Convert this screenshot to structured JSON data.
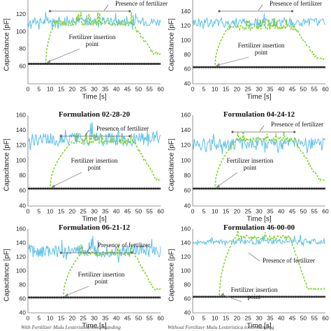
{
  "caption": {
    "left": "With Fertilizer Mulu Lesteristica tonormanding",
    "right": "Without Fertilizer Mulu Lesteristica tonormanding"
  },
  "chart_data": [
    {
      "type": "line",
      "title": "",
      "xlabel": "Time [s]",
      "ylabel": "Capacitance [pF]",
      "xlim": [
        0,
        60
      ],
      "ylim": [
        40,
        140
      ],
      "xticks": [
        0,
        5,
        10,
        15,
        20,
        25,
        30,
        35,
        40,
        45,
        50,
        55,
        60
      ],
      "yticks": [
        60,
        80,
        100,
        120,
        140
      ],
      "grid": false,
      "annotations": {
        "presence": "Presence of fertilizer",
        "insertion": "Fertilizer insertion point"
      },
      "presence_range": [
        10,
        46
      ],
      "insertion_time": 8,
      "series": [
        {
          "role": "with-fertilizer",
          "color": "#5bc0e8",
          "style": "solid",
          "baseline": 112,
          "amp": 5
        },
        {
          "role": "fertilizer-response",
          "color": "#7ed321",
          "style": "dashed",
          "base": 63,
          "plateau": 110,
          "rise": [
            8,
            12
          ],
          "fall": [
            47,
            57
          ]
        },
        {
          "role": "without-fertilizer",
          "color": "#222222",
          "style": "markers",
          "value": 63
        }
      ]
    },
    {
      "type": "line",
      "title": "",
      "xlabel": "Time [s]",
      "ylabel": "Capacitance [pF]",
      "xlim": [
        0,
        60
      ],
      "ylim": [
        40,
        160
      ],
      "xticks": [
        0,
        5,
        10,
        15,
        20,
        25,
        30,
        35,
        40,
        45,
        50,
        55,
        60
      ],
      "yticks": [
        40,
        60,
        80,
        100,
        120,
        140,
        160
      ],
      "grid": false,
      "annotations": {
        "presence": "Presence of fertilizer",
        "insertion": "Fertilizer insertion point"
      },
      "presence_range": [
        12,
        45
      ],
      "insertion_time": 10,
      "series": [
        {
          "role": "with-fertilizer",
          "color": "#5bc0e8",
          "style": "solid",
          "baseline": 125,
          "amp": 7
        },
        {
          "role": "fertilizer-response",
          "color": "#7ed321",
          "style": "dashed",
          "base": 63,
          "plateau": 118,
          "rise": [
            10,
            16
          ],
          "fall": [
            46,
            56
          ]
        },
        {
          "role": "without-fertilizer",
          "color": "#222222",
          "style": "markers",
          "value": 63
        }
      ]
    },
    {
      "type": "line",
      "title": "Formulation 02-28-20",
      "xlabel": "Time [s]",
      "ylabel": "Capacitance [pF]",
      "xlim": [
        0,
        60
      ],
      "ylim": [
        40,
        160
      ],
      "xticks": [
        0,
        5,
        10,
        15,
        20,
        25,
        30,
        35,
        40,
        45,
        50,
        55,
        60
      ],
      "yticks": [
        40,
        60,
        80,
        100,
        120,
        140,
        160
      ],
      "grid": false,
      "annotations": {
        "presence": "Presence of fertilizer",
        "insertion": "Fertilizer insertion point"
      },
      "presence_range": [
        15,
        46
      ],
      "insertion_time": 10,
      "series": [
        {
          "role": "with-fertilizer",
          "color": "#5bc0e8",
          "style": "solid",
          "baseline": 128,
          "amp": 9
        },
        {
          "role": "fertilizer-response",
          "color": "#7ed321",
          "style": "dashed",
          "base": 63,
          "plateau": 125,
          "rise": [
            10,
            20
          ],
          "fall": [
            48,
            58
          ]
        },
        {
          "role": "without-fertilizer",
          "color": "#222222",
          "style": "markers",
          "value": 63
        }
      ]
    },
    {
      "type": "line",
      "title": "Formulation 04-24-12",
      "xlabel": "Time [s]",
      "ylabel": "Capacitance [pF]",
      "xlim": [
        0,
        60
      ],
      "ylim": [
        40,
        160
      ],
      "xticks": [
        0,
        5,
        10,
        15,
        20,
        25,
        30,
        35,
        40,
        45,
        50,
        55,
        60
      ],
      "yticks": [
        40,
        60,
        80,
        100,
        120,
        140,
        160
      ],
      "grid": false,
      "annotations": {
        "presence": "Presence of fertilizer",
        "insertion": "Fertilizer insertion point"
      },
      "presence_range": [
        18,
        46
      ],
      "insertion_time": 10,
      "series": [
        {
          "role": "with-fertilizer",
          "color": "#5bc0e8",
          "style": "solid",
          "baseline": 122,
          "amp": 8
        },
        {
          "role": "fertilizer-response",
          "color": "#7ed321",
          "style": "dashed",
          "base": 63,
          "plateau": 128,
          "rise": [
            10,
            20
          ],
          "fall": [
            46,
            57
          ]
        },
        {
          "role": "without-fertilizer",
          "color": "#222222",
          "style": "markers",
          "value": 63
        }
      ]
    },
    {
      "type": "line",
      "title": "Formulation 06-21-12",
      "xlabel": "Time [s]",
      "ylabel": "Capacitance [pF]",
      "xlim": [
        0,
        60
      ],
      "ylim": [
        40,
        160
      ],
      "xticks": [
        0,
        5,
        10,
        15,
        20,
        25,
        30,
        35,
        40,
        45,
        50,
        55,
        60
      ],
      "yticks": [
        40,
        60,
        80,
        100,
        120,
        140,
        160
      ],
      "grid": false,
      "annotations": {
        "presence": "Presence of fertilizer",
        "insertion": "Fertilizer insertion point"
      },
      "presence_range": [
        15,
        47
      ],
      "insertion_time": 16,
      "series": [
        {
          "role": "with-fertilizer",
          "color": "#5bc0e8",
          "style": "solid",
          "baseline": 128,
          "amp": 9
        },
        {
          "role": "fertilizer-response",
          "color": "#7ed321",
          "style": "dashed",
          "base": 62,
          "plateau": 125,
          "rise": [
            16,
            24
          ],
          "fall": [
            48,
            57
          ]
        },
        {
          "role": "without-fertilizer",
          "color": "#222222",
          "style": "markers",
          "value": 62
        }
      ]
    },
    {
      "type": "line",
      "title": "Formulation 46-00-00",
      "xlabel": "Time [s]",
      "ylabel": "Capacitance [pF]",
      "xlim": [
        0,
        60
      ],
      "ylim": [
        40,
        160
      ],
      "xticks": [
        0,
        5,
        10,
        15,
        20,
        25,
        30,
        35,
        40,
        45,
        50,
        55,
        60
      ],
      "yticks": [
        40,
        60,
        80,
        100,
        120,
        140,
        160
      ],
      "grid": false,
      "annotations": {
        "presence": "Presence of fertilizer",
        "insertion": "Fertilizer insertion point"
      },
      "presence_range": [
        null,
        null
      ],
      "insertion_time": 12,
      "series": [
        {
          "role": "with-fertilizer",
          "color": "#5bc0e8",
          "style": "solid",
          "baseline": 142,
          "amp": 4
        },
        {
          "role": "fertilizer-response",
          "color": "#7ed321",
          "style": "dashed",
          "base": 63,
          "plateau": 148,
          "rise": [
            12,
            19
          ],
          "fall": [
            44,
            52
          ]
        },
        {
          "role": "without-fertilizer",
          "color": "#222222",
          "style": "markers",
          "value": 63
        }
      ]
    }
  ]
}
